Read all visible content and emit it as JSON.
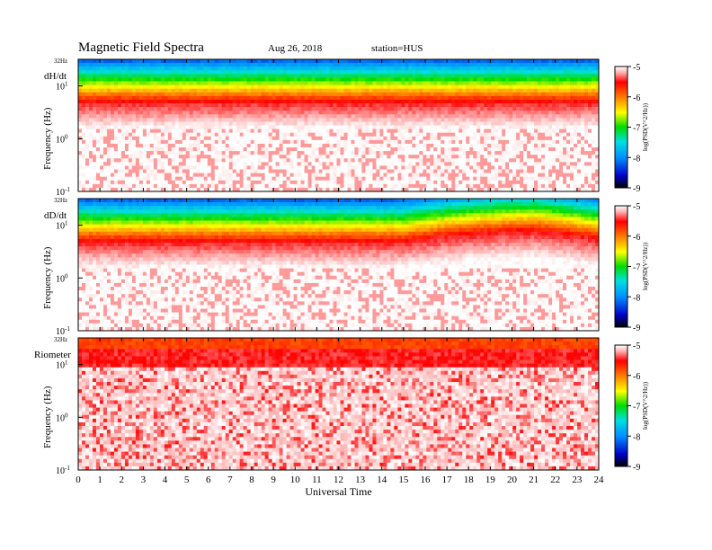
{
  "header": {
    "title": "Magnetic  Field  Spectra",
    "date": "Aug 26, 2018",
    "station": "station=HUS"
  },
  "chart_data": [
    {
      "type": "heatmap",
      "panel_label": "dH/dt",
      "ylabel": "Frequency  (Hz)",
      "xlabel": "",
      "y_scale": "log",
      "ylim": [
        0.1,
        32
      ],
      "y_ticks": [
        {
          "value": 32,
          "label": "32Hz"
        },
        {
          "value": 10,
          "label": "10",
          "sup": "1"
        },
        {
          "value": 1,
          "label": "10",
          "sup": "0"
        },
        {
          "value": 0.1,
          "label": "10",
          "sup": "-1"
        }
      ],
      "xlim": [
        0,
        24
      ],
      "colorbar": {
        "label": "log(PSD(V^2/Hz))",
        "range": [
          -9,
          -5
        ],
        "ticks": [
          -5,
          -6,
          -7,
          -8,
          -9
        ]
      },
      "features": {
        "band_center_hz": 5.0,
        "band_curve": "flat",
        "activity": "weak broadband below 3 Hz"
      }
    },
    {
      "type": "heatmap",
      "panel_label": "dD/dt",
      "ylabel": "Frequency  (Hz)",
      "xlabel": "",
      "y_scale": "log",
      "ylim": [
        0.1,
        32
      ],
      "y_ticks": [
        {
          "value": 32,
          "label": "32Hz"
        },
        {
          "value": 10,
          "label": "10",
          "sup": "1"
        },
        {
          "value": 1,
          "label": "10",
          "sup": "0"
        },
        {
          "value": 0.1,
          "label": "10",
          "sup": "-1"
        }
      ],
      "xlim": [
        0,
        24
      ],
      "colorbar": {
        "label": "log(PSD(V^2/Hz))",
        "range": [
          -9,
          -5
        ],
        "ticks": [
          -5,
          -6,
          -7,
          -8,
          -9
        ]
      },
      "features": {
        "band_center_hz": 5.0,
        "band_curve": "rises to about 8 Hz between 16 and 22 UT",
        "activity": "weak broadband below 3 Hz before 15 UT"
      }
    },
    {
      "type": "heatmap",
      "panel_label": "Riometer",
      "ylabel": "Frequency  (Hz)",
      "xlabel": "Universal Time",
      "y_scale": "log",
      "ylim": [
        0.1,
        32
      ],
      "y_ticks": [
        {
          "value": 32,
          "label": "32Hz"
        },
        {
          "value": 10,
          "label": "10",
          "sup": "1"
        },
        {
          "value": 1,
          "label": "10",
          "sup": "0"
        },
        {
          "value": 0.1,
          "label": "10",
          "sup": "-1"
        }
      ],
      "xlim": [
        0,
        24
      ],
      "x_ticks": [
        0,
        1,
        2,
        3,
        4,
        5,
        6,
        7,
        8,
        9,
        10,
        11,
        12,
        13,
        14,
        15,
        16,
        17,
        18,
        19,
        20,
        21,
        22,
        23,
        24
      ],
      "colorbar": {
        "label": "log(PSD(V^2/Hz))",
        "range": [
          -9,
          -5
        ],
        "ticks": [
          -5,
          -6,
          -7,
          -8,
          -9
        ]
      },
      "features": {
        "band_center_hz": 20.0,
        "band_curve": "flat",
        "activity": "pink broadband across all frequencies"
      }
    }
  ]
}
